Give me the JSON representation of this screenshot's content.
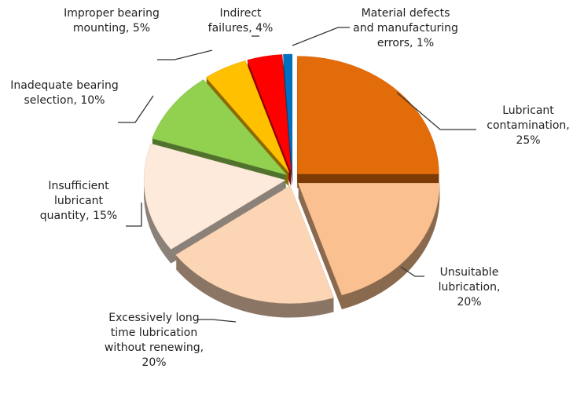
{
  "chart_data": {
    "type": "pie",
    "values": [
      25,
      20,
      20,
      15,
      10,
      5,
      4,
      1
    ],
    "value_labels": [
      "Lubricant contamination, 25%",
      "Unsuitable lubrication, 20%",
      "Excessively long time lubrication without renewing, 20%",
      "Insufficient lubricant quantity, 15%",
      "Inadequate bearing selection, 10%",
      "Improper bearing mounting, 5%",
      "Indirect failures, 4%",
      "Material defects and manufacturing errors, 1%"
    ],
    "colors": [
      "#e36c0a",
      "#fac090",
      "#fcd5b5",
      "#fdeada",
      "#92d050",
      "#ffc000",
      "#ff0000",
      "#0070c0"
    ],
    "exploded": true,
    "three_d": true
  }
}
